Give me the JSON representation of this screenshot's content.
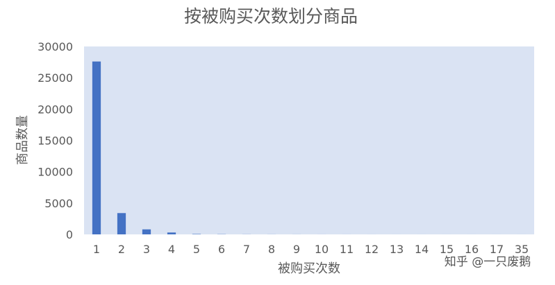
{
  "chart_data": {
    "type": "bar",
    "title": "按被购买次数划分商品",
    "xlabel": "被购买次数",
    "ylabel": "商品数量",
    "categories": [
      "1",
      "2",
      "3",
      "4",
      "5",
      "6",
      "7",
      "8",
      "9",
      "10",
      "11",
      "12",
      "13",
      "14",
      "15",
      "16",
      "17",
      "35"
    ],
    "values": [
      27600,
      3400,
      800,
      300,
      60,
      30,
      15,
      10,
      8,
      5,
      4,
      3,
      2,
      2,
      1,
      1,
      1,
      1
    ],
    "ylim": [
      0,
      30000
    ],
    "yticks": [
      0,
      5000,
      10000,
      15000,
      20000,
      25000,
      30000
    ],
    "grid": false,
    "legend": "none",
    "colors": {
      "bar": "#4472C4",
      "plot_background": "#DAE3F3",
      "text": "#595959"
    }
  },
  "watermark": "知乎 @一只废鹅"
}
